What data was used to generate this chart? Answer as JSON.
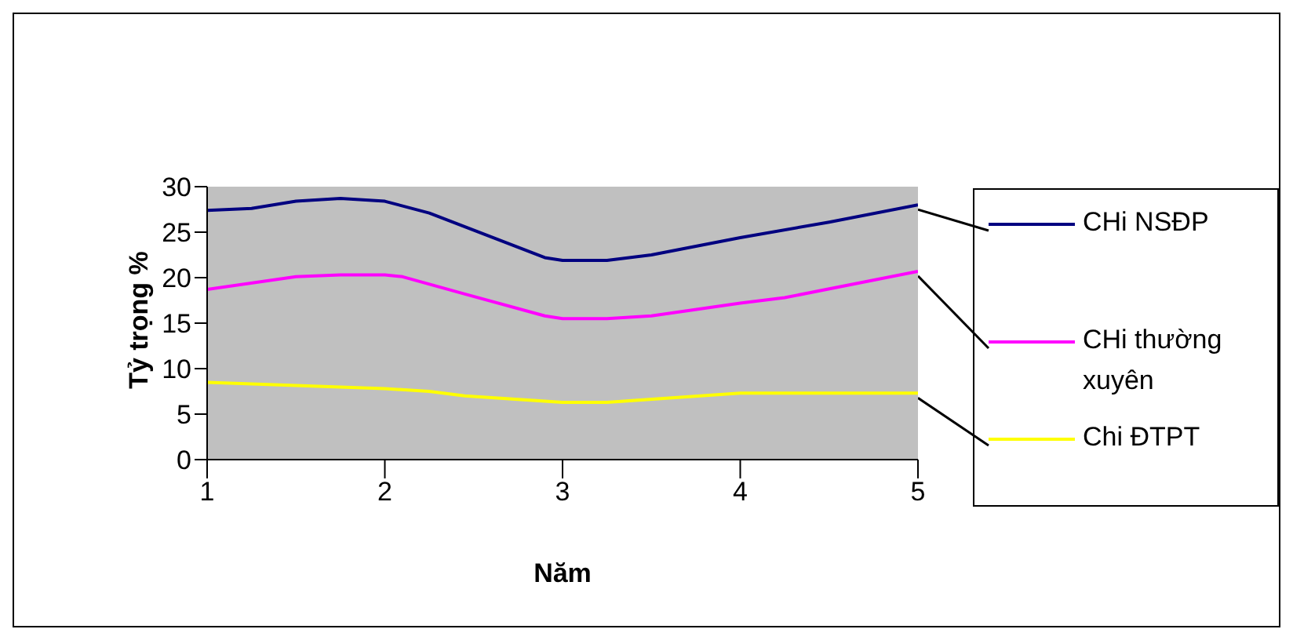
{
  "chart_data": {
    "type": "line",
    "xlabel": "Năm",
    "ylabel": "Tỷ trọng %",
    "xlim": [
      1,
      5
    ],
    "xticks": [
      1,
      2,
      3,
      4,
      5
    ],
    "ylim": [
      0,
      30
    ],
    "yticks": [
      0,
      5,
      10,
      15,
      20,
      25,
      30
    ],
    "grid": false,
    "legend": "right",
    "marker": "none",
    "line_style": "solid",
    "series": [
      {
        "name": "CHi NSĐP",
        "color": "#000080",
        "x": [
          1,
          1.25,
          1.5,
          1.75,
          2,
          2.25,
          2.9,
          3,
          3.25,
          3.5,
          4,
          4.5,
          5
        ],
        "values": [
          27.4,
          27.6,
          28.4,
          28.7,
          28.4,
          27.1,
          22.2,
          21.9,
          21.9,
          22.5,
          24.4,
          26.1,
          28.0
        ]
      },
      {
        "name": "CHi thường xuyên",
        "color": "#ff00ff",
        "x": [
          1,
          1.5,
          1.75,
          2,
          2.1,
          2.45,
          2.9,
          3,
          3.25,
          3.5,
          4,
          4.25,
          5
        ],
        "values": [
          18.7,
          20.1,
          20.3,
          20.3,
          20.1,
          18.2,
          15.8,
          15.5,
          15.5,
          15.8,
          17.2,
          17.8,
          20.7
        ]
      },
      {
        "name": "Chi ĐTPT",
        "color": "#ffff00",
        "x": [
          1,
          2,
          2.25,
          2.45,
          3,
          3.25,
          4,
          5
        ],
        "values": [
          8.5,
          7.8,
          7.5,
          7.0,
          6.3,
          6.3,
          7.3,
          7.3
        ]
      }
    ]
  }
}
